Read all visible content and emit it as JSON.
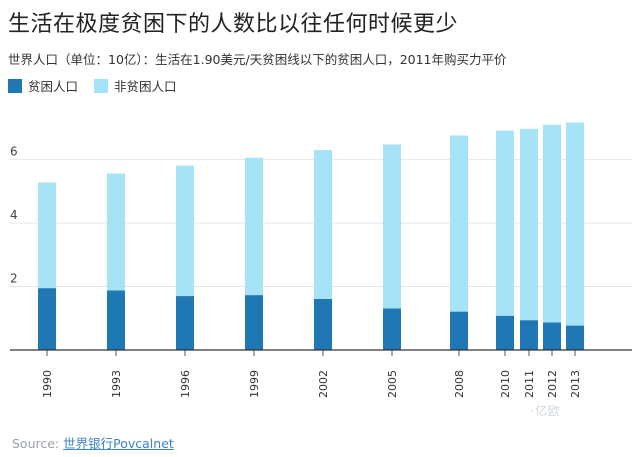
{
  "chart_data": {
    "type": "bar",
    "stacked": true,
    "title": "生活在极度贫困下的人数比以往任何时候更少",
    "subtitle": "世界人口（单位：10亿）：生活在1.90美元/天贫困线以下的贫困人口，2011年购买力平价",
    "categories": [
      "1990",
      "1993",
      "1996",
      "1999",
      "2002",
      "2005",
      "2008",
      "2010",
      "2011",
      "2012",
      "2013"
    ],
    "series": [
      {
        "name": "贫困人口",
        "color": "#1f77b4",
        "values": [
          1.95,
          1.88,
          1.7,
          1.73,
          1.61,
          1.31,
          1.21,
          1.08,
          0.94,
          0.87,
          0.77
        ]
      },
      {
        "name": "非贫困人口",
        "color": "#a6e3f7",
        "values": [
          3.33,
          3.68,
          4.11,
          4.33,
          4.69,
          5.17,
          5.55,
          5.83,
          6.03,
          6.23,
          6.4
        ]
      }
    ],
    "ylim": [
      0,
      7.5
    ],
    "yticks": [
      2,
      4,
      6
    ],
    "xlabel": "",
    "ylabel": "",
    "legend": "top-left",
    "grid": true
  },
  "source": {
    "label": "Source: ",
    "link_text": "世界银行Povcalnet"
  },
  "watermark": "·亿欧"
}
